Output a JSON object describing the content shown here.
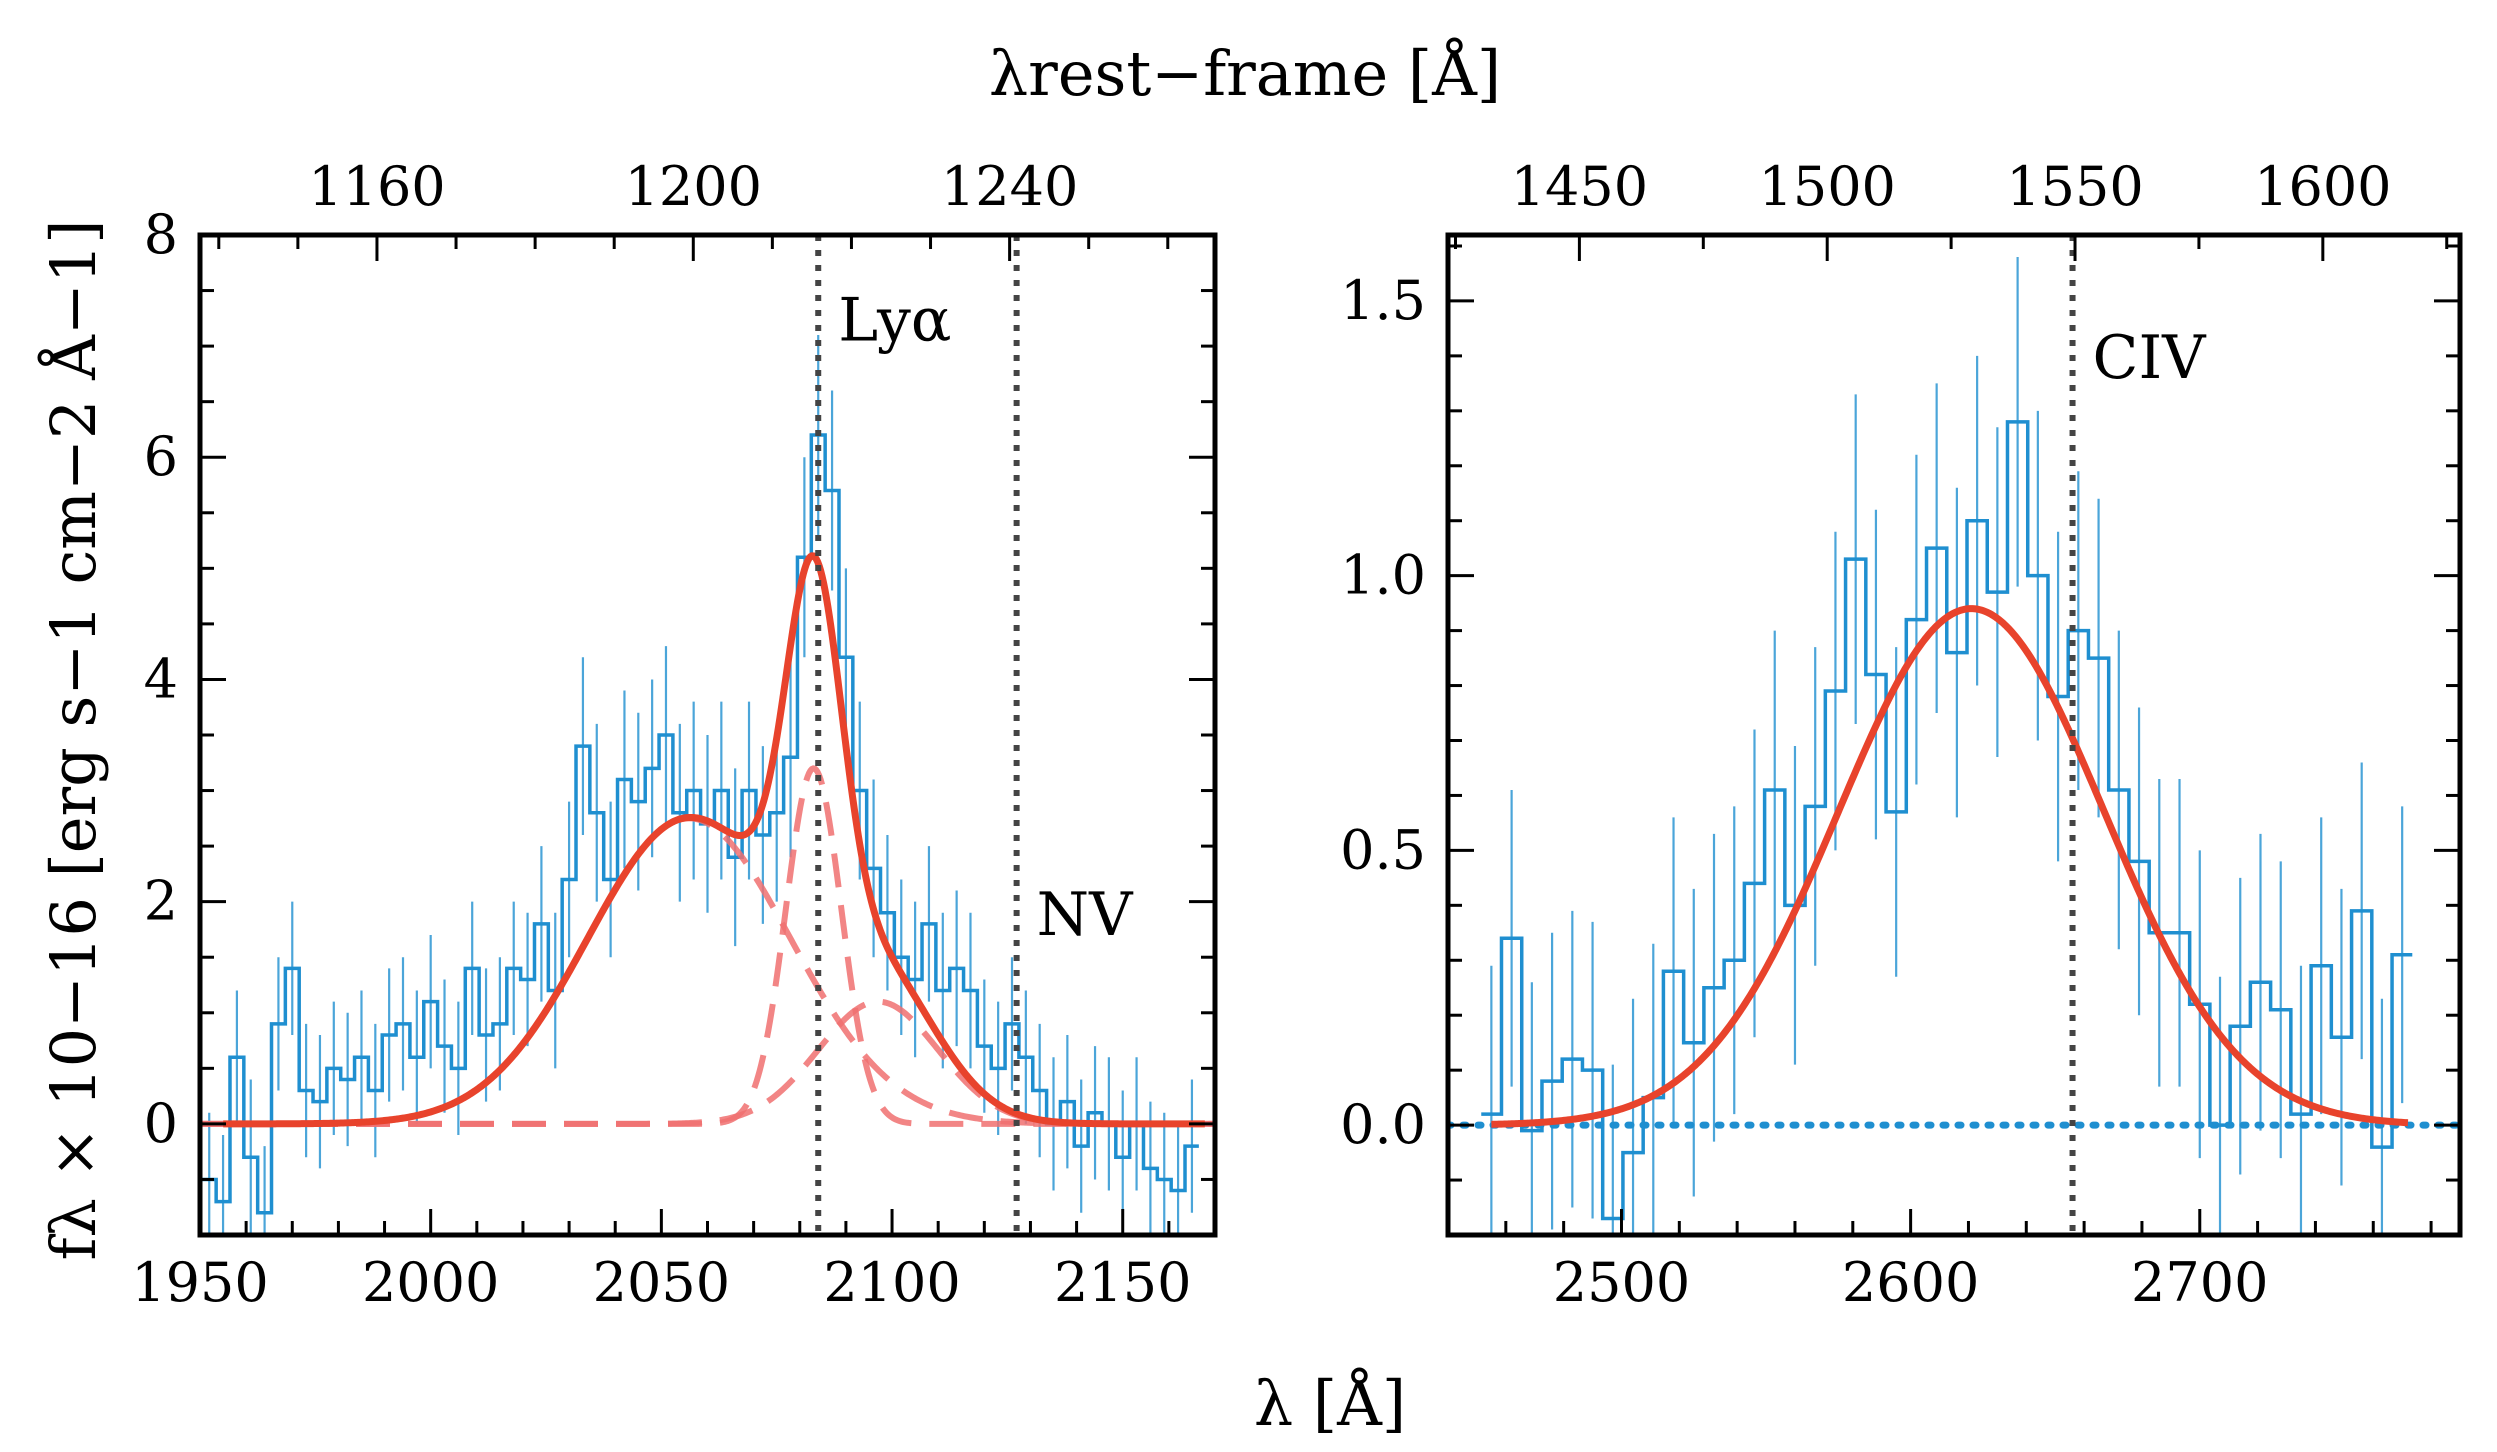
{
  "figure": {
    "top_axis_title": "λrest−frame [Å]",
    "bottom_axis_title": "λ [Å]",
    "left_ylabel": "fλ × 10−16 [erg s−1 cm−2 Å−1]"
  },
  "colors": {
    "data": "#1f8fd0",
    "model": "#e8432c",
    "component": "#f07070",
    "marker": "#444444",
    "zero_line": "#1f8fd0"
  },
  "chart_data": [
    {
      "type": "line",
      "panel": "left",
      "xlabel": "λ [Å]",
      "top_xlabel": "λrest−frame [Å]",
      "ylabel": "fλ × 10−16 [erg s−1 cm−2 Å−1]",
      "xlim": [
        1950,
        2170
      ],
      "ylim": [
        -1.0,
        8.0
      ],
      "xticks": [
        1950,
        2000,
        2050,
        2100,
        2150
      ],
      "yticks": [
        0,
        2,
        4,
        6,
        8
      ],
      "top_ticks_rest": [
        1160,
        1200,
        1240
      ],
      "redshift_factor": 1.7141,
      "annotations": [
        {
          "label": "Lyα",
          "x": 2084
        },
        {
          "label": "NV",
          "x": 2127
        }
      ],
      "markers_x": [
        2084,
        2127
      ],
      "spectrum": {
        "name": "data",
        "x": [
          1952,
          1955,
          1958,
          1961,
          1964,
          1967,
          1970,
          1973,
          1976,
          1979,
          1982,
          1985,
          1988,
          1991,
          1994,
          1997,
          2000,
          2003,
          2006,
          2009,
          2012,
          2015,
          2018,
          2021,
          2024,
          2027,
          2030,
          2033,
          2036,
          2039,
          2042,
          2045,
          2048,
          2051,
          2054,
          2057,
          2060,
          2063,
          2066,
          2069,
          2072,
          2075,
          2078,
          2081,
          2084,
          2087,
          2090,
          2093,
          2096,
          2099,
          2102,
          2105,
          2108,
          2111,
          2114,
          2117,
          2120,
          2123,
          2126,
          2129,
          2132,
          2135,
          2138,
          2141,
          2144,
          2147,
          2150,
          2153,
          2156,
          2159,
          2162,
          2165
        ],
        "y": [
          -0.5,
          -0.7,
          0.6,
          -0.3,
          -0.8,
          0.9,
          1.4,
          0.3,
          0.2,
          0.5,
          0.4,
          0.6,
          0.3,
          0.8,
          0.9,
          0.6,
          1.1,
          0.7,
          0.5,
          1.4,
          0.8,
          0.9,
          1.4,
          1.3,
          1.8,
          1.2,
          2.2,
          3.4,
          2.8,
          2.2,
          3.1,
          2.9,
          3.2,
          3.5,
          2.8,
          3.0,
          2.7,
          3.0,
          2.4,
          3.0,
          2.6,
          2.8,
          3.3,
          5.1,
          6.2,
          5.7,
          4.2,
          3.0,
          2.3,
          1.9,
          1.5,
          1.3,
          1.8,
          1.2,
          1.4,
          1.2,
          0.7,
          0.5,
          0.9,
          0.6,
          0.3,
          0.0,
          0.2,
          -0.2,
          0.1,
          0.0,
          -0.3,
          0.0,
          -0.4,
          -0.5,
          -0.6,
          -0.2
        ],
        "yerr": [
          0.6,
          0.6,
          0.6,
          0.7,
          0.6,
          0.6,
          0.6,
          0.6,
          0.6,
          0.6,
          0.6,
          0.6,
          0.6,
          0.6,
          0.6,
          0.6,
          0.6,
          0.6,
          0.6,
          0.6,
          0.6,
          0.6,
          0.6,
          0.6,
          0.7,
          0.7,
          0.7,
          0.8,
          0.8,
          0.7,
          0.8,
          0.8,
          0.8,
          0.8,
          0.8,
          0.8,
          0.8,
          0.8,
          0.8,
          0.8,
          0.8,
          0.8,
          0.9,
          0.9,
          0.9,
          0.9,
          0.8,
          0.8,
          0.8,
          0.7,
          0.7,
          0.7,
          0.7,
          0.7,
          0.7,
          0.7,
          0.6,
          0.6,
          0.6,
          0.6,
          0.6,
          0.6,
          0.6,
          0.6,
          0.6,
          0.6,
          0.6,
          0.6,
          0.6,
          0.6,
          0.6,
          0.6
        ]
      },
      "model": {
        "name": "fit",
        "components": [
          {
            "center": 2056,
            "amplitude": 2.75,
            "sigma": 22
          },
          {
            "center": 2083,
            "amplitude": 3.2,
            "sigma": 6
          },
          {
            "center": 2097,
            "amplitude": 1.1,
            "sigma": 13
          }
        ],
        "profile": "gaussian"
      }
    },
    {
      "type": "line",
      "panel": "right",
      "xlabel": "λ [Å]",
      "top_xlabel": "λrest−frame [Å]",
      "xlim": [
        2440,
        2790
      ],
      "ylim": [
        -0.2,
        1.62
      ],
      "xticks": [
        2500,
        2600,
        2700
      ],
      "yticks": [
        0.0,
        0.5,
        1.0,
        1.5
      ],
      "ytick_labels": [
        "0.0",
        "0.5",
        "1.0",
        "1.5"
      ],
      "top_ticks_rest": [
        1450,
        1500,
        1550,
        1600
      ],
      "redshift_factor": 1.7141,
      "annotations": [
        {
          "label": "CIV",
          "x": 2656
        }
      ],
      "markers_x": [
        2656
      ],
      "zero_line": true,
      "spectrum": {
        "name": "data",
        "x": [
          2455,
          2462,
          2469,
          2476,
          2483,
          2490,
          2497,
          2504,
          2511,
          2518,
          2525,
          2532,
          2539,
          2546,
          2553,
          2560,
          2567,
          2574,
          2581,
          2588,
          2595,
          2602,
          2609,
          2616,
          2623,
          2630,
          2637,
          2644,
          2651,
          2658,
          2665,
          2672,
          2679,
          2686,
          2693,
          2700,
          2707,
          2714,
          2721,
          2728,
          2735,
          2742,
          2749,
          2756,
          2763,
          2770
        ],
        "y": [
          0.02,
          0.34,
          -0.01,
          0.08,
          0.12,
          0.1,
          -0.17,
          -0.05,
          0.05,
          0.28,
          0.15,
          0.25,
          0.3,
          0.44,
          0.61,
          0.4,
          0.58,
          0.79,
          1.03,
          0.82,
          0.57,
          0.92,
          1.05,
          0.86,
          1.1,
          0.97,
          1.28,
          1.0,
          0.78,
          0.9,
          0.85,
          0.61,
          0.48,
          0.35,
          0.35,
          0.22,
          0.0,
          0.18,
          0.26,
          0.21,
          0.02,
          0.29,
          0.16,
          0.39,
          -0.04,
          0.31
        ],
        "yerr": [
          0.27,
          0.27,
          0.27,
          0.27,
          0.27,
          0.27,
          0.28,
          0.28,
          0.28,
          0.28,
          0.28,
          0.28,
          0.28,
          0.28,
          0.29,
          0.29,
          0.29,
          0.29,
          0.3,
          0.3,
          0.3,
          0.3,
          0.3,
          0.3,
          0.3,
          0.3,
          0.3,
          0.3,
          0.3,
          0.29,
          0.29,
          0.29,
          0.28,
          0.28,
          0.28,
          0.28,
          0.27,
          0.27,
          0.27,
          0.27,
          0.27,
          0.27,
          0.27,
          0.27,
          0.27,
          0.27
        ]
      },
      "model": {
        "name": "fit",
        "components": [
          {
            "center": 2621,
            "amplitude": 0.94,
            "sigma": 46
          }
        ],
        "profile": "gaussian"
      }
    }
  ]
}
